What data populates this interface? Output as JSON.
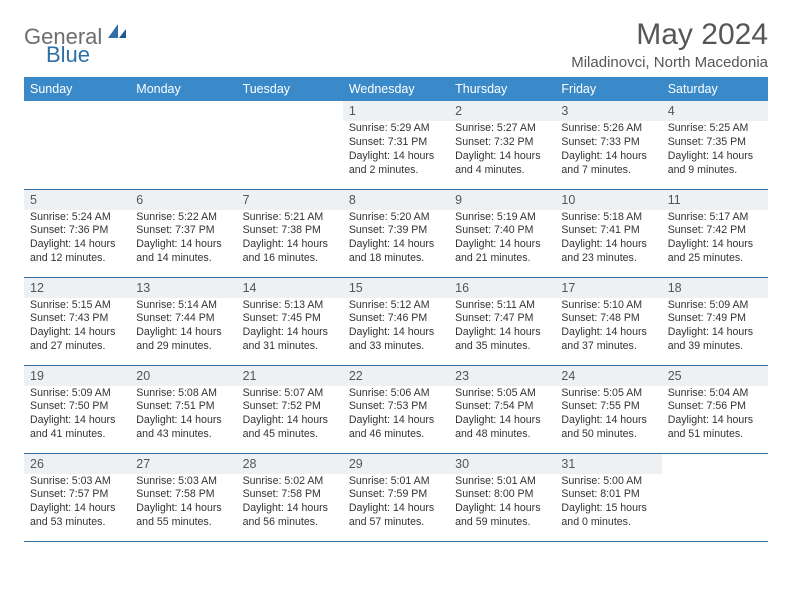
{
  "logo": {
    "text1": "General",
    "text2": "Blue"
  },
  "title": "May 2024",
  "subtitle": "Miladinovci, North Macedonia",
  "header_bg": "#3a8ac9",
  "header_fg": "#ffffff",
  "daynum_bg": "#eef1f3",
  "border_color": "#2f6fa7",
  "days_of_week": [
    "Sunday",
    "Monday",
    "Tuesday",
    "Wednesday",
    "Thursday",
    "Friday",
    "Saturday"
  ],
  "weeks": [
    [
      {
        "n": "",
        "sr": "",
        "ss": "",
        "dl": ""
      },
      {
        "n": "",
        "sr": "",
        "ss": "",
        "dl": ""
      },
      {
        "n": "",
        "sr": "",
        "ss": "",
        "dl": ""
      },
      {
        "n": "1",
        "sr": "Sunrise: 5:29 AM",
        "ss": "Sunset: 7:31 PM",
        "dl": "Daylight: 14 hours and 2 minutes."
      },
      {
        "n": "2",
        "sr": "Sunrise: 5:27 AM",
        "ss": "Sunset: 7:32 PM",
        "dl": "Daylight: 14 hours and 4 minutes."
      },
      {
        "n": "3",
        "sr": "Sunrise: 5:26 AM",
        "ss": "Sunset: 7:33 PM",
        "dl": "Daylight: 14 hours and 7 minutes."
      },
      {
        "n": "4",
        "sr": "Sunrise: 5:25 AM",
        "ss": "Sunset: 7:35 PM",
        "dl": "Daylight: 14 hours and 9 minutes."
      }
    ],
    [
      {
        "n": "5",
        "sr": "Sunrise: 5:24 AM",
        "ss": "Sunset: 7:36 PM",
        "dl": "Daylight: 14 hours and 12 minutes."
      },
      {
        "n": "6",
        "sr": "Sunrise: 5:22 AM",
        "ss": "Sunset: 7:37 PM",
        "dl": "Daylight: 14 hours and 14 minutes."
      },
      {
        "n": "7",
        "sr": "Sunrise: 5:21 AM",
        "ss": "Sunset: 7:38 PM",
        "dl": "Daylight: 14 hours and 16 minutes."
      },
      {
        "n": "8",
        "sr": "Sunrise: 5:20 AM",
        "ss": "Sunset: 7:39 PM",
        "dl": "Daylight: 14 hours and 18 minutes."
      },
      {
        "n": "9",
        "sr": "Sunrise: 5:19 AM",
        "ss": "Sunset: 7:40 PM",
        "dl": "Daylight: 14 hours and 21 minutes."
      },
      {
        "n": "10",
        "sr": "Sunrise: 5:18 AM",
        "ss": "Sunset: 7:41 PM",
        "dl": "Daylight: 14 hours and 23 minutes."
      },
      {
        "n": "11",
        "sr": "Sunrise: 5:17 AM",
        "ss": "Sunset: 7:42 PM",
        "dl": "Daylight: 14 hours and 25 minutes."
      }
    ],
    [
      {
        "n": "12",
        "sr": "Sunrise: 5:15 AM",
        "ss": "Sunset: 7:43 PM",
        "dl": "Daylight: 14 hours and 27 minutes."
      },
      {
        "n": "13",
        "sr": "Sunrise: 5:14 AM",
        "ss": "Sunset: 7:44 PM",
        "dl": "Daylight: 14 hours and 29 minutes."
      },
      {
        "n": "14",
        "sr": "Sunrise: 5:13 AM",
        "ss": "Sunset: 7:45 PM",
        "dl": "Daylight: 14 hours and 31 minutes."
      },
      {
        "n": "15",
        "sr": "Sunrise: 5:12 AM",
        "ss": "Sunset: 7:46 PM",
        "dl": "Daylight: 14 hours and 33 minutes."
      },
      {
        "n": "16",
        "sr": "Sunrise: 5:11 AM",
        "ss": "Sunset: 7:47 PM",
        "dl": "Daylight: 14 hours and 35 minutes."
      },
      {
        "n": "17",
        "sr": "Sunrise: 5:10 AM",
        "ss": "Sunset: 7:48 PM",
        "dl": "Daylight: 14 hours and 37 minutes."
      },
      {
        "n": "18",
        "sr": "Sunrise: 5:09 AM",
        "ss": "Sunset: 7:49 PM",
        "dl": "Daylight: 14 hours and 39 minutes."
      }
    ],
    [
      {
        "n": "19",
        "sr": "Sunrise: 5:09 AM",
        "ss": "Sunset: 7:50 PM",
        "dl": "Daylight: 14 hours and 41 minutes."
      },
      {
        "n": "20",
        "sr": "Sunrise: 5:08 AM",
        "ss": "Sunset: 7:51 PM",
        "dl": "Daylight: 14 hours and 43 minutes."
      },
      {
        "n": "21",
        "sr": "Sunrise: 5:07 AM",
        "ss": "Sunset: 7:52 PM",
        "dl": "Daylight: 14 hours and 45 minutes."
      },
      {
        "n": "22",
        "sr": "Sunrise: 5:06 AM",
        "ss": "Sunset: 7:53 PM",
        "dl": "Daylight: 14 hours and 46 minutes."
      },
      {
        "n": "23",
        "sr": "Sunrise: 5:05 AM",
        "ss": "Sunset: 7:54 PM",
        "dl": "Daylight: 14 hours and 48 minutes."
      },
      {
        "n": "24",
        "sr": "Sunrise: 5:05 AM",
        "ss": "Sunset: 7:55 PM",
        "dl": "Daylight: 14 hours and 50 minutes."
      },
      {
        "n": "25",
        "sr": "Sunrise: 5:04 AM",
        "ss": "Sunset: 7:56 PM",
        "dl": "Daylight: 14 hours and 51 minutes."
      }
    ],
    [
      {
        "n": "26",
        "sr": "Sunrise: 5:03 AM",
        "ss": "Sunset: 7:57 PM",
        "dl": "Daylight: 14 hours and 53 minutes."
      },
      {
        "n": "27",
        "sr": "Sunrise: 5:03 AM",
        "ss": "Sunset: 7:58 PM",
        "dl": "Daylight: 14 hours and 55 minutes."
      },
      {
        "n": "28",
        "sr": "Sunrise: 5:02 AM",
        "ss": "Sunset: 7:58 PM",
        "dl": "Daylight: 14 hours and 56 minutes."
      },
      {
        "n": "29",
        "sr": "Sunrise: 5:01 AM",
        "ss": "Sunset: 7:59 PM",
        "dl": "Daylight: 14 hours and 57 minutes."
      },
      {
        "n": "30",
        "sr": "Sunrise: 5:01 AM",
        "ss": "Sunset: 8:00 PM",
        "dl": "Daylight: 14 hours and 59 minutes."
      },
      {
        "n": "31",
        "sr": "Sunrise: 5:00 AM",
        "ss": "Sunset: 8:01 PM",
        "dl": "Daylight: 15 hours and 0 minutes."
      },
      {
        "n": "",
        "sr": "",
        "ss": "",
        "dl": ""
      }
    ]
  ]
}
